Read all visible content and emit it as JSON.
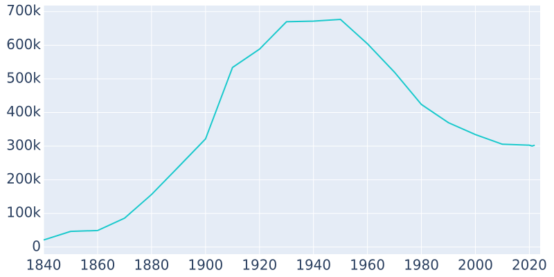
{
  "chart_data": {
    "type": "line",
    "x": [
      1840,
      1850,
      1860,
      1870,
      1880,
      1890,
      1900,
      1910,
      1920,
      1930,
      1940,
      1950,
      1960,
      1970,
      1980,
      1990,
      2000,
      2010,
      2020,
      2021,
      2022
    ],
    "series": [
      {
        "color": "#19c9cc",
        "values": [
          21115,
          46601,
          49221,
          86076,
          156389,
          238617,
          321616,
          533905,
          588343,
          669817,
          671659,
          676806,
          604332,
          520117,
          423938,
          369879,
          334563,
          305704,
          302971,
          300431,
          302898
        ]
      }
    ],
    "xlim": [
      1840,
      2024
    ],
    "xticks": [
      1840,
      1860,
      1880,
      1900,
      1920,
      1940,
      1960,
      1980,
      2000,
      2020
    ],
    "ylim": [
      -21000,
      718000
    ],
    "yticks": [
      0,
      {
        "value": 100000,
        "label": "100k"
      },
      {
        "value": 200000,
        "label": "200k"
      },
      {
        "value": 300000,
        "label": "300k"
      },
      {
        "value": 400000,
        "label": "400k"
      },
      {
        "value": 500000,
        "label": "500k"
      },
      {
        "value": 600000,
        "label": "600k"
      },
      {
        "value": 700000,
        "label": "700k"
      }
    ],
    "grid": true
  }
}
